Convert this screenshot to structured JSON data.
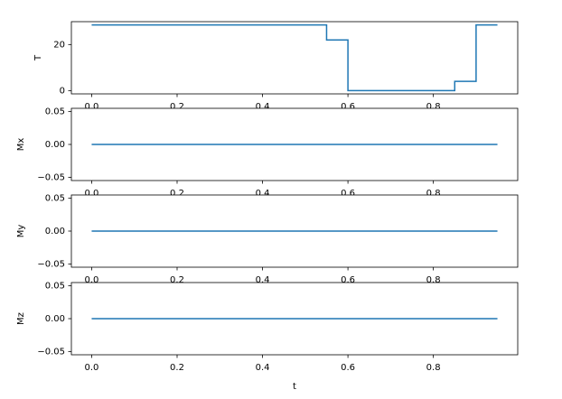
{
  "chart_data": [
    {
      "type": "line",
      "drawstyle": "steps-post",
      "ylabel": "T",
      "color": "#1f77b4",
      "x": [
        0,
        0.55,
        0.6,
        0.85,
        0.9,
        0.95
      ],
      "values": [
        28.5,
        22,
        0,
        4,
        28.5,
        28.5
      ],
      "xlim": [
        -0.0475,
        0.9975
      ],
      "xticks": [
        {
          "value": 0,
          "label": "0.0"
        },
        0.2,
        0.4,
        0.6,
        0.8
      ],
      "ylim": [
        -1.425,
        29.925
      ],
      "yticks": [
        0,
        20
      ]
    },
    {
      "type": "line",
      "ylabel": "Mx",
      "color": "#1f77b4",
      "x": [
        0,
        0.95
      ],
      "values": [
        0,
        0
      ],
      "xlim": [
        -0.0475,
        0.9975
      ],
      "xticks": [
        {
          "value": 0,
          "label": "0.0"
        },
        0.2,
        0.4,
        0.6,
        0.8
      ],
      "ylim": [
        -0.055,
        0.055
      ],
      "yticks": [
        {
          "value": -0.05,
          "label": "−0.05"
        },
        {
          "value": 0,
          "label": "0.00"
        },
        0.05
      ]
    },
    {
      "type": "line",
      "ylabel": "My",
      "color": "#1f77b4",
      "x": [
        0,
        0.95
      ],
      "values": [
        0,
        0
      ],
      "xlim": [
        -0.0475,
        0.9975
      ],
      "xticks": [
        {
          "value": 0,
          "label": "0.0"
        },
        0.2,
        0.4,
        0.6,
        0.8
      ],
      "ylim": [
        -0.055,
        0.055
      ],
      "yticks": [
        {
          "value": -0.05,
          "label": "−0.05"
        },
        {
          "value": 0,
          "label": "0.00"
        },
        0.05
      ]
    },
    {
      "type": "line",
      "ylabel": "Mz",
      "xlabel": "t",
      "color": "#1f77b4",
      "x": [
        0,
        0.95
      ],
      "values": [
        0,
        0
      ],
      "xlim": [
        -0.0475,
        0.9975
      ],
      "xticks": [
        {
          "value": 0,
          "label": "0.0"
        },
        0.2,
        0.4,
        0.6,
        0.8
      ],
      "ylim": [
        -0.055,
        0.055
      ],
      "yticks": [
        {
          "value": -0.05,
          "label": "−0.05"
        },
        {
          "value": 0,
          "label": "0.00"
        },
        0.05
      ]
    }
  ]
}
